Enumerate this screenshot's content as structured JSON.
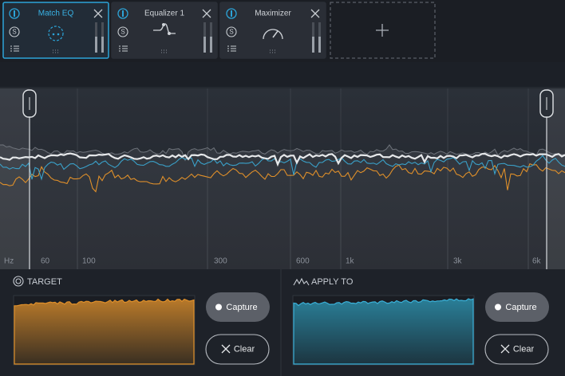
{
  "modules": [
    {
      "name": "Match EQ",
      "solo": "S"
    },
    {
      "name": "Equalizer 1",
      "solo": "S"
    },
    {
      "name": "Maximizer",
      "solo": "S"
    }
  ],
  "frequency_axis": {
    "labels": [
      "Hz",
      "60",
      "100",
      "300",
      "600",
      "1k",
      "3k",
      "6k"
    ]
  },
  "target": {
    "title": "TARGET",
    "capture": "Capture",
    "clear": "Clear"
  },
  "apply_to": {
    "title": "APPLY TO",
    "capture": "Capture",
    "clear": "Clear"
  }
}
